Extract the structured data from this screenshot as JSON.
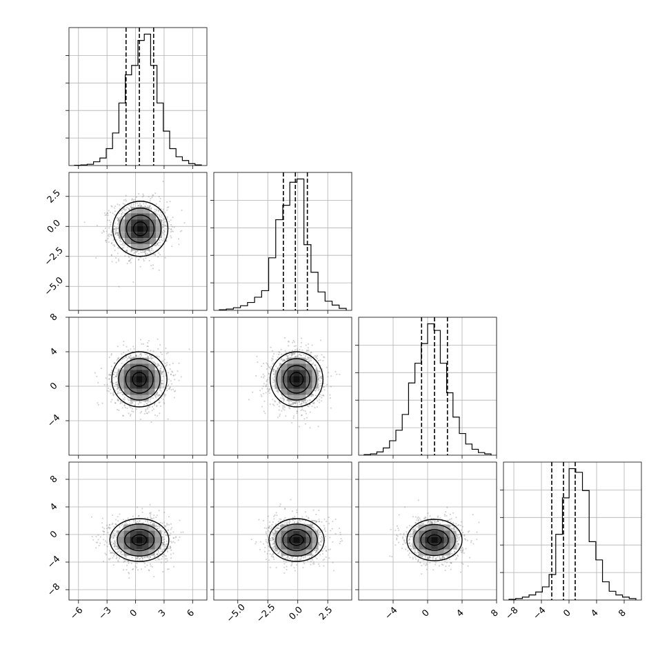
{
  "chart_data": {
    "type": "corner",
    "grid": true,
    "params": [
      {
        "range": [
          -7,
          7.5
        ],
        "ticks": [
          -6,
          -3,
          0,
          3,
          6
        ],
        "tick_labels": [
          "−6",
          "−3",
          "0",
          "3",
          "6"
        ],
        "quantiles": [
          -1.0,
          0.4,
          1.9
        ]
      },
      {
        "range": [
          -7,
          4.5
        ],
        "ticks": [
          -5.0,
          -2.5,
          0.0,
          2.5
        ],
        "tick_labels": [
          "−5.0",
          "−2.5",
          "0.0",
          "2.5"
        ],
        "quantiles": [
          -1.2,
          -0.2,
          0.8
        ]
      },
      {
        "range": [
          -8,
          8
        ],
        "ticks": [
          -4,
          0,
          4,
          8
        ],
        "tick_labels": [
          "−4",
          "0",
          "4",
          "8"
        ],
        "quantiles": [
          -0.7,
          0.8,
          2.3
        ]
      },
      {
        "range": [
          -9.5,
          10.5
        ],
        "ticks": [
          -8,
          -4,
          0,
          4,
          8
        ],
        "tick_labels": [
          "−8",
          "−4",
          "0",
          "4",
          "8"
        ],
        "quantiles": [
          -2.5,
          -0.8,
          0.9
        ]
      }
    ],
    "histograms": [
      [
        0.5,
        1,
        2,
        6,
        12,
        27,
        52,
        100,
        145,
        160,
        200,
        210,
        160,
        100,
        55,
        27,
        14,
        8,
        3,
        1
      ],
      [
        1,
        2,
        4,
        7,
        12,
        20,
        30,
        80,
        138,
        160,
        195,
        200,
        100,
        58,
        28,
        14,
        8,
        3
      ],
      [
        1,
        2,
        5,
        11,
        22,
        38,
        62,
        110,
        140,
        170,
        200,
        190,
        140,
        95,
        58,
        33,
        17,
        9,
        4,
        2
      ],
      [
        1,
        2,
        4,
        7,
        11,
        18,
        35,
        90,
        140,
        180,
        175,
        150,
        80,
        55,
        25,
        12,
        7,
        4,
        2
      ]
    ],
    "pairs": [
      {
        "x": 0,
        "y": 1,
        "center": [
          0.5,
          -0.2
        ],
        "sigma": [
          1.45,
          1.15
        ]
      },
      {
        "x": 0,
        "y": 2,
        "center": [
          0.4,
          0.8
        ],
        "sigma": [
          1.45,
          1.6
        ]
      },
      {
        "x": 1,
        "y": 2,
        "center": [
          -0.1,
          0.8
        ],
        "sigma": [
          1.1,
          1.6
        ]
      },
      {
        "x": 0,
        "y": 3,
        "center": [
          0.4,
          -0.8
        ],
        "sigma": [
          1.55,
          1.55
        ]
      },
      {
        "x": 1,
        "y": 3,
        "center": [
          -0.1,
          -0.8
        ],
        "sigma": [
          1.15,
          1.55
        ]
      },
      {
        "x": 2,
        "y": 3,
        "center": [
          0.8,
          -0.8
        ],
        "sigma": [
          1.6,
          1.5
        ]
      }
    ]
  }
}
